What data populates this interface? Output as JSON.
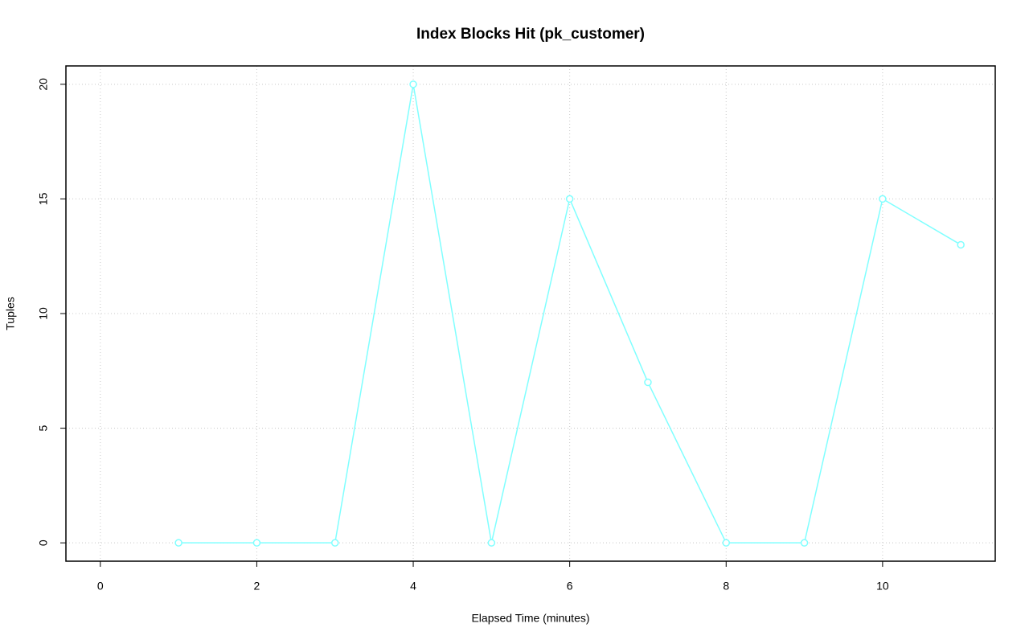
{
  "chart_data": {
    "type": "line",
    "title": "Index Blocks Hit (pk_customer)",
    "x_label": "Elapsed Time (minutes)",
    "y_label": "Tuples",
    "x": [
      1,
      2,
      3,
      4,
      5,
      6,
      7,
      8,
      9,
      10,
      11
    ],
    "series": [
      {
        "name": "pk_customer",
        "color": "#80ffff",
        "values": [
          0,
          0,
          0,
          20,
          0,
          15,
          7,
          0,
          0,
          15,
          13
        ]
      }
    ],
    "xlim": [
      -0.44,
      11.44
    ],
    "ylim": [
      -0.8,
      20.8
    ],
    "xticks": [
      0,
      2,
      4,
      6,
      8,
      10
    ],
    "yticks": [
      0,
      5,
      10,
      15,
      20
    ],
    "grid": true
  }
}
